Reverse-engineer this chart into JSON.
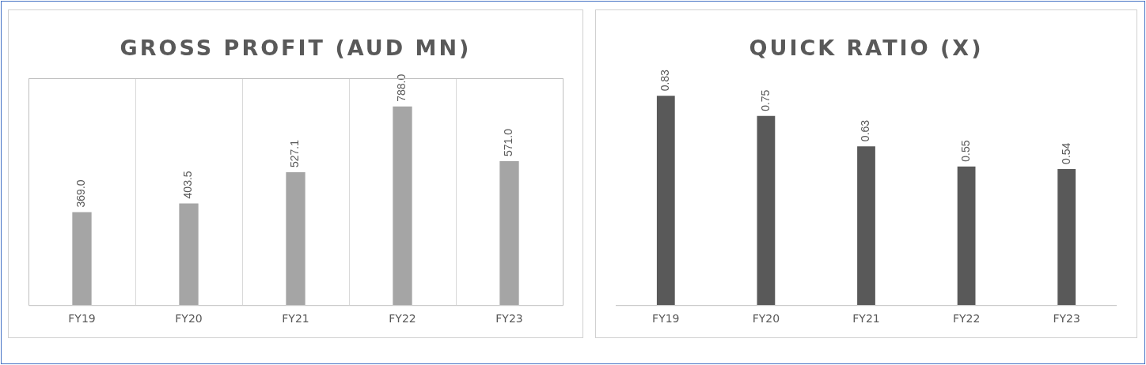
{
  "chart_data": [
    {
      "type": "bar",
      "title": "GROSS PROFIT (AUD MN)",
      "categories": [
        "FY19",
        "FY20",
        "FY21",
        "FY22",
        "FY23"
      ],
      "values": [
        369.0,
        403.5,
        527.1,
        788.0,
        571.0
      ],
      "value_labels": [
        "369.0",
        "403.5",
        "527.1",
        "788.0",
        "571.0"
      ],
      "color": "#a5a5a5",
      "grid": "x",
      "legend": false
    },
    {
      "type": "bar",
      "title": "QUICK RATIO (X)",
      "categories": [
        "FY19",
        "FY20",
        "FY21",
        "FY22",
        "FY23"
      ],
      "values": [
        0.83,
        0.75,
        0.63,
        0.55,
        0.54
      ],
      "data_labels": true,
      "color": "#595959",
      "legend": false
    }
  ]
}
